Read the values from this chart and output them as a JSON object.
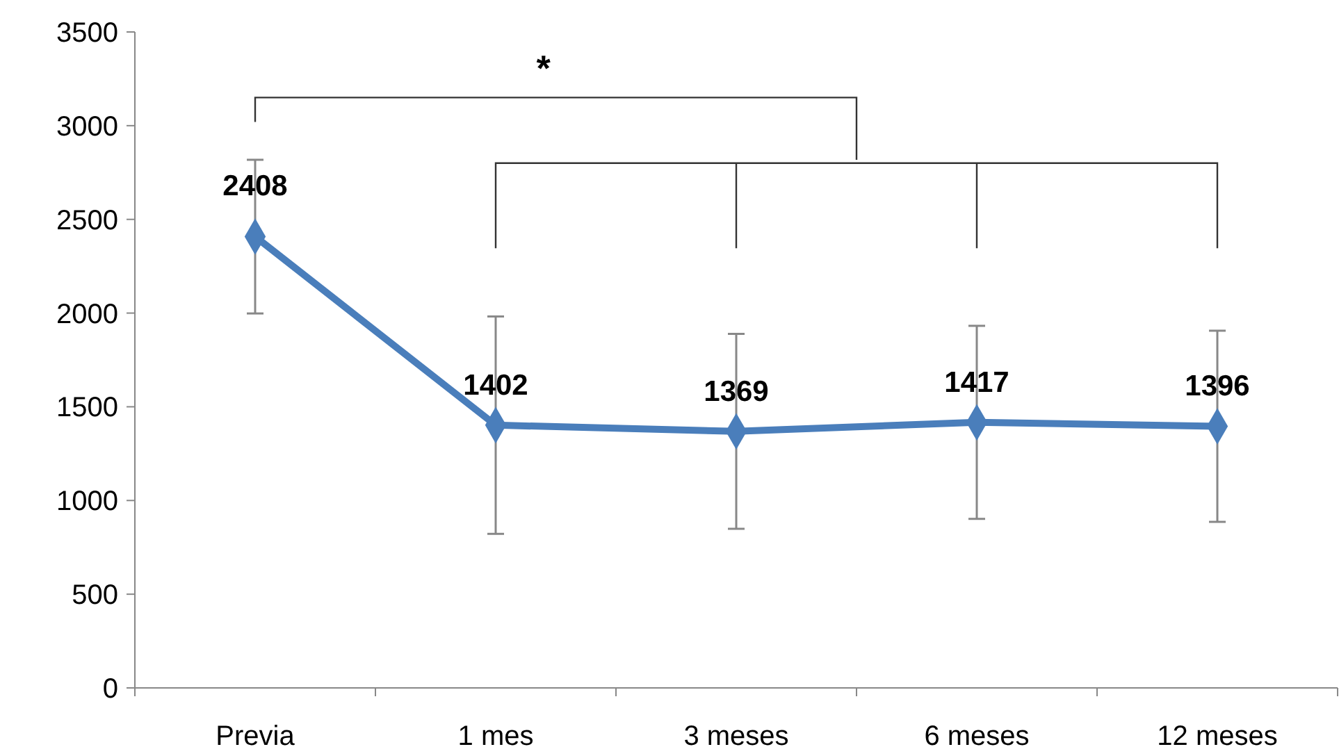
{
  "chart_data": {
    "type": "line",
    "categories": [
      "Previa",
      "1 mes",
      "3 meses",
      "6 meses",
      "12 meses"
    ],
    "series": [
      {
        "color": "#4a7ebb",
        "values": [
          2408,
          1402,
          1369,
          1417,
          1396
        ],
        "errors": [
          410,
          580,
          520,
          515,
          510
        ]
      }
    ],
    "ylim": [
      0,
      3500
    ],
    "yticks": [
      0,
      500,
      1000,
      1500,
      2000,
      2500,
      3000,
      3500
    ],
    "grid": false,
    "marker": "diamond",
    "line_style": "solid",
    "data_labels": true,
    "annotations": [
      "*"
    ]
  }
}
